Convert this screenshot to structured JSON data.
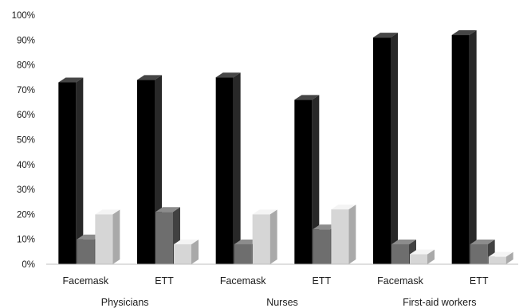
{
  "chart_data": {
    "type": "bar",
    "style": "3d-clustered-column",
    "title": "",
    "xlabel": "",
    "ylabel": "",
    "ylim": [
      0,
      100
    ],
    "y_unit": "%",
    "y_ticks": [
      0,
      10,
      20,
      30,
      40,
      50,
      60,
      70,
      80,
      90,
      100
    ],
    "grid": false,
    "legend": "none",
    "groups": [
      {
        "label": "Physicians",
        "categories": [
          "Facemask",
          "ETT"
        ]
      },
      {
        "label": "Nurses",
        "categories": [
          "Facemask",
          "ETT"
        ]
      },
      {
        "label": "First-aid workers",
        "categories": [
          "Facemask",
          "ETT"
        ]
      }
    ],
    "categories": [
      "Facemask",
      "ETT",
      "Facemask",
      "ETT",
      "Facemask",
      "ETT"
    ],
    "series": [
      {
        "color": "#000000",
        "values": [
          73,
          74,
          75,
          66,
          91,
          92
        ]
      },
      {
        "color": "#6e6e6e",
        "values": [
          10,
          21,
          8,
          14,
          8,
          8
        ]
      },
      {
        "color": "#d6d6d6",
        "values": [
          20,
          8,
          20,
          22,
          4,
          3
        ]
      }
    ]
  }
}
